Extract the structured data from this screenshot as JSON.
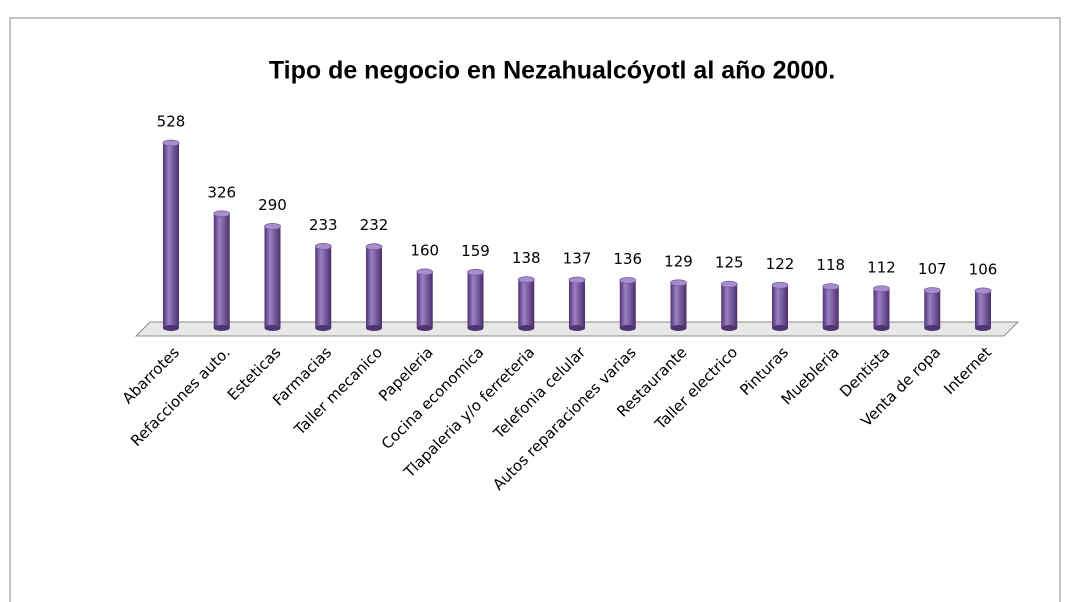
{
  "chart_data": {
    "type": "bar3d",
    "title": "Tipo de negocio en Nezahualcóyotl al año 2000.",
    "categories": [
      "Abarrotes",
      "Refacciones auto.",
      "Esteticas",
      "Farmacias",
      "Taller mecanico",
      "Papeleria",
      "Cocina economica",
      "Tlapaleria y/o ferreteria",
      "Telefonia celular",
      "Autos reparaciones varias",
      "Restaurante",
      "Taller electrico",
      "Pinturas",
      "Muebleria",
      "Dentista",
      "Venta de ropa",
      "Internet"
    ],
    "values": [
      528,
      326,
      290,
      233,
      232,
      160,
      159,
      138,
      137,
      136,
      129,
      125,
      122,
      118,
      112,
      107,
      106
    ],
    "color": "#7b58a6"
  }
}
